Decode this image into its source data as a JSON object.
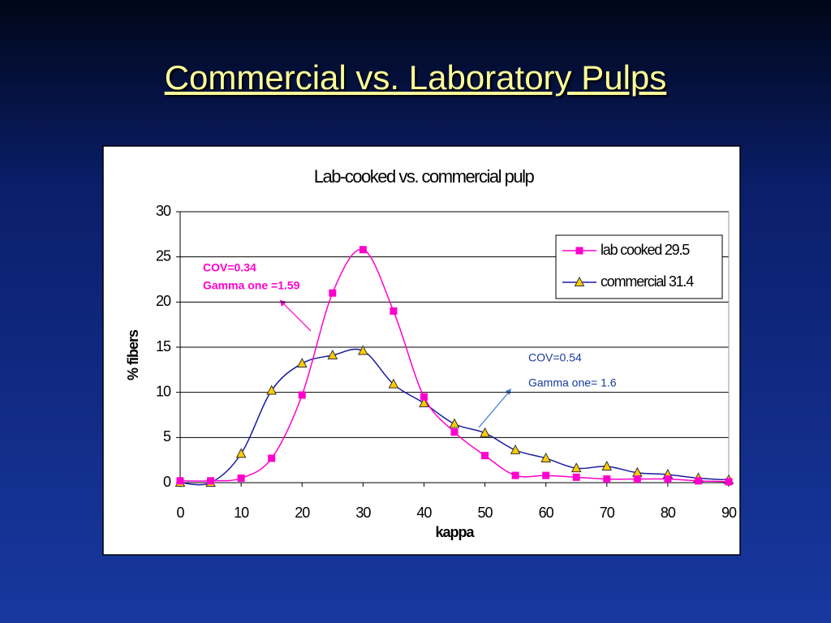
{
  "slide_title": "Commercial vs. Laboratory Pulps",
  "chart_data": {
    "type": "line",
    "title": "Lab-cooked vs. commercial pulp",
    "x_label": "kappa",
    "y_label": "% fibers",
    "x": [
      0,
      5,
      10,
      15,
      20,
      25,
      30,
      35,
      40,
      45,
      50,
      55,
      60,
      65,
      70,
      75,
      80,
      85,
      90
    ],
    "series": [
      {
        "name": "lab cooked 29.5",
        "color": "#ff00cc",
        "marker": "square",
        "values": [
          0.2,
          0.2,
          0.5,
          2.7,
          9.7,
          21,
          25.8,
          19,
          9.5,
          5.6,
          3.0,
          0.8,
          0.8,
          0.6,
          0.4,
          0.4,
          0.4,
          0.2,
          0.1
        ]
      },
      {
        "name": "commercial 31.4",
        "color": "#1a1aa0",
        "marker": "triangle",
        "values": [
          0,
          0,
          3.2,
          10.2,
          13.2,
          14.1,
          14.6,
          10.9,
          8.8,
          6.5,
          5.5,
          3.6,
          2.7,
          1.6,
          1.8,
          1.1,
          0.9,
          0.5,
          0.3
        ]
      }
    ],
    "xlim": [
      0,
      90
    ],
    "xticks": [
      0,
      10,
      20,
      30,
      40,
      50,
      60,
      70,
      80,
      90
    ],
    "ylim": [
      0,
      30
    ],
    "yticks": [
      0,
      5,
      10,
      15,
      20,
      25,
      30
    ],
    "grid": true,
    "legend": "upper right",
    "annotations": [
      {
        "lines": [
          "COV=0.34",
          "Gamma one =1.59"
        ],
        "color": "#ff00cc"
      },
      {
        "lines": [
          "COV=0.54",
          "Gamma one= 1.6"
        ],
        "color": "#1a3aa0"
      }
    ]
  }
}
